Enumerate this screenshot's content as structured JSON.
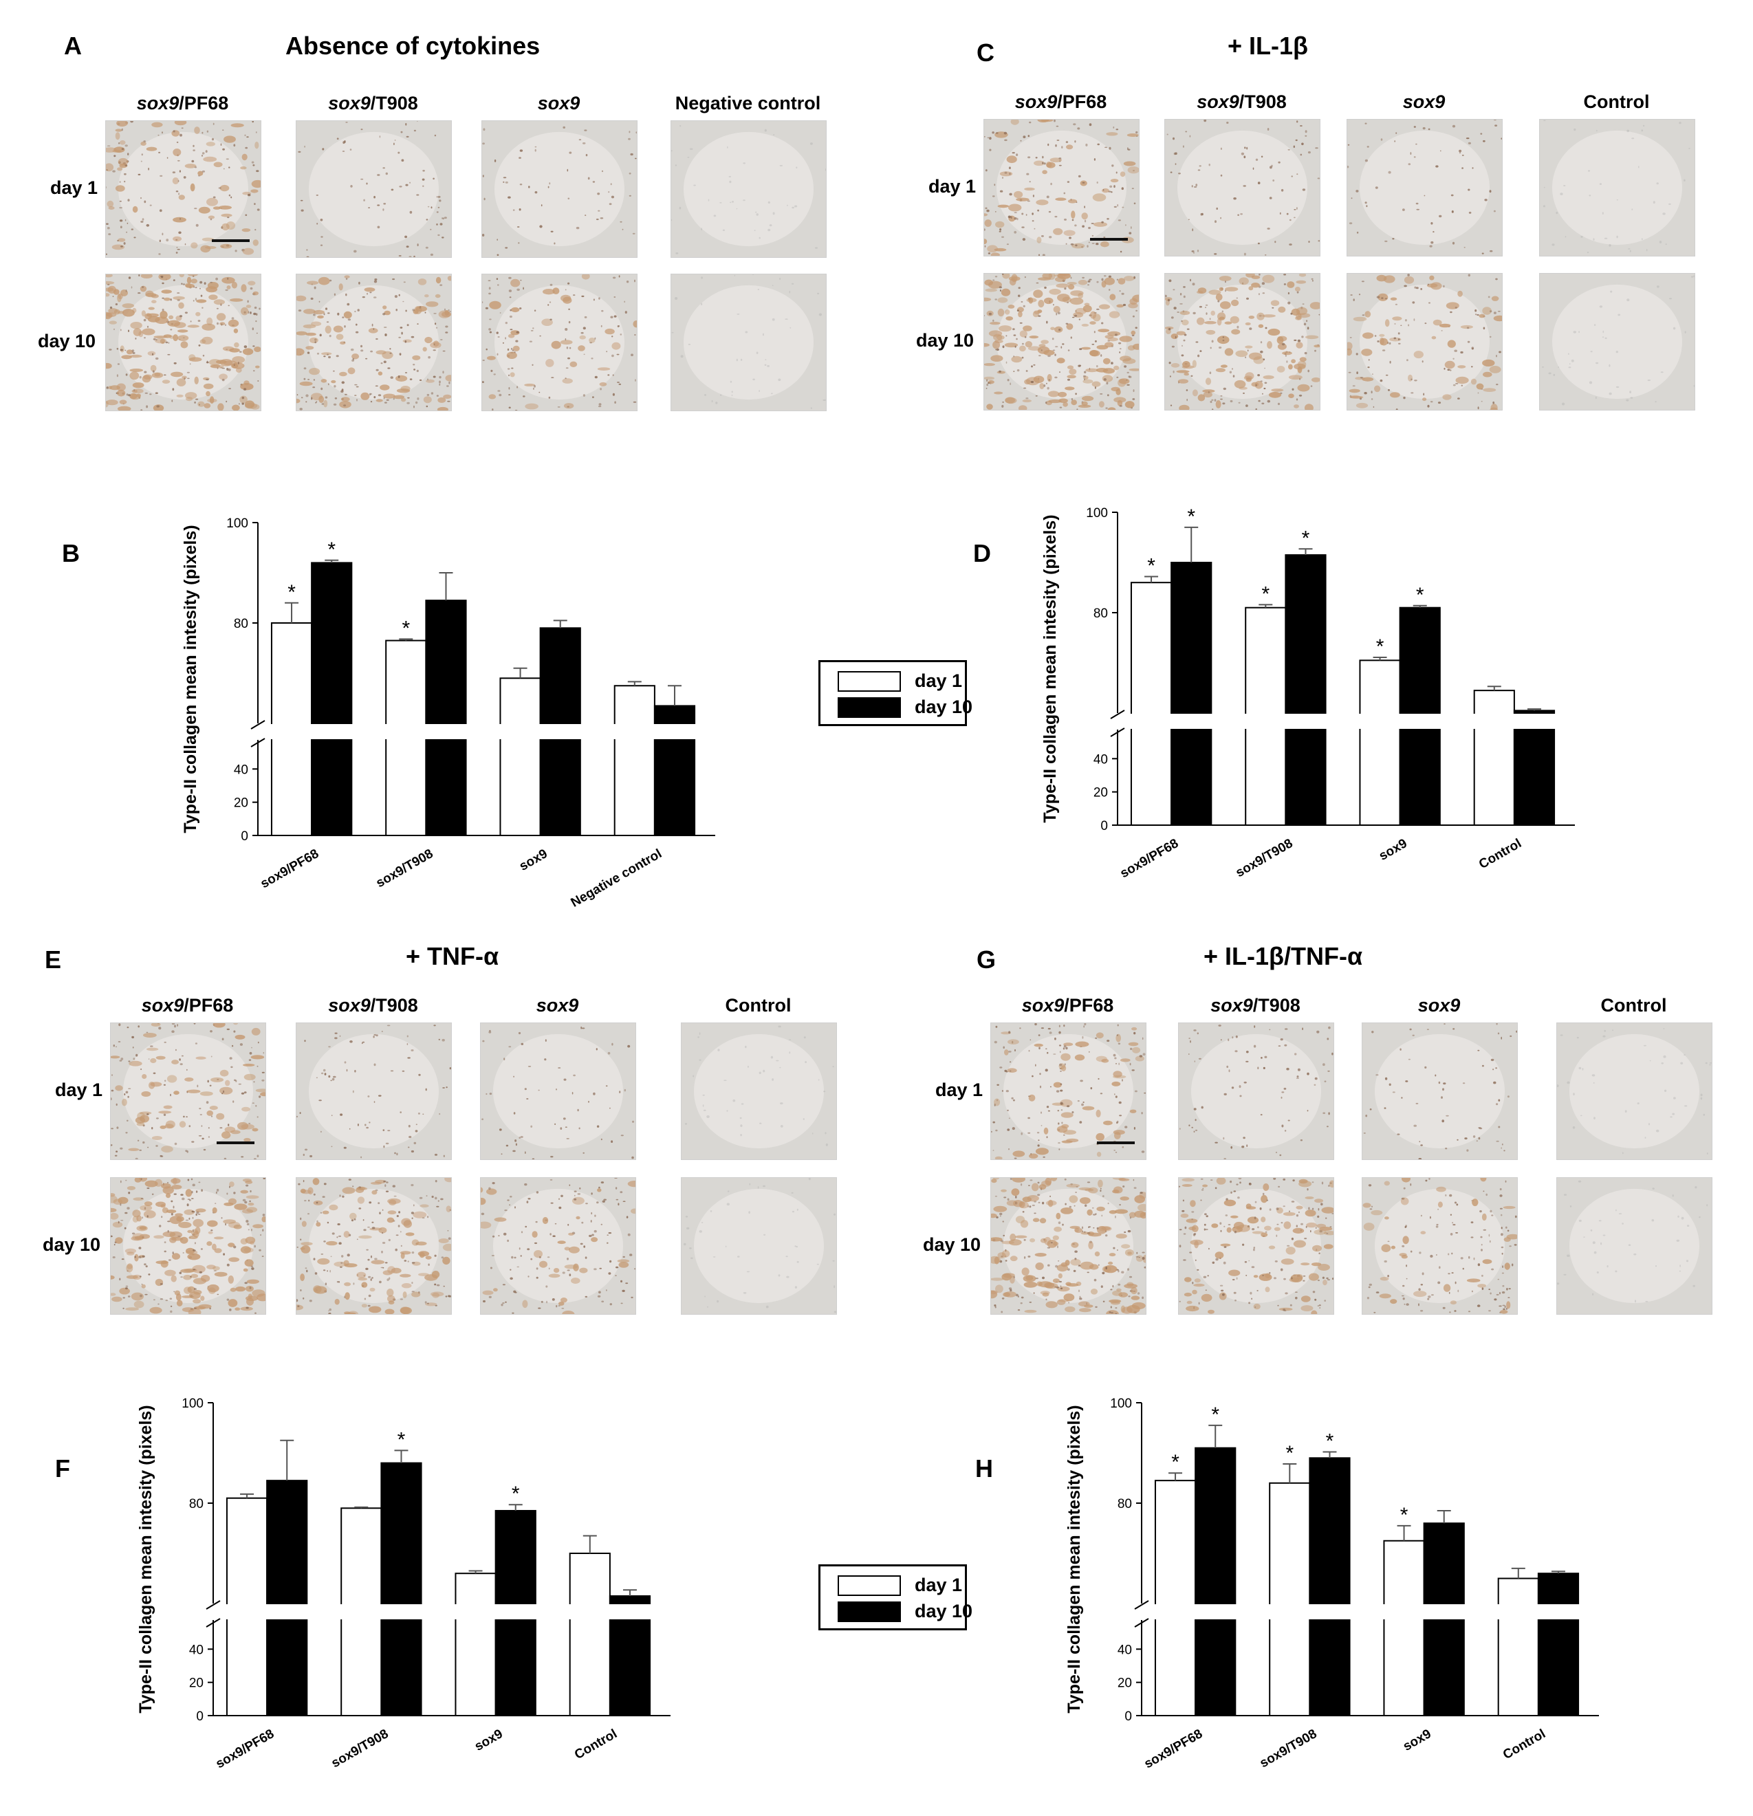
{
  "legend": {
    "day1_label": "day 1",
    "day10_label": "day 10",
    "colors": {
      "day1": "#ffffff",
      "day10": "#000000"
    }
  },
  "micrograph_panels": [
    {
      "letter": "A",
      "title": "Absence of cytokines",
      "columns": [
        {
          "gene": "sox9",
          "suffix": "/PF68"
        },
        {
          "gene": "sox9",
          "suffix": "/T908"
        },
        {
          "gene": "sox9",
          "suffix": ""
        },
        {
          "gene": "",
          "suffix": "Negative control"
        }
      ],
      "rows": [
        "day 1",
        "day 10"
      ]
    },
    {
      "letter": "C",
      "title": "+ IL-1β",
      "columns": [
        {
          "gene": "sox9",
          "suffix": "/PF68"
        },
        {
          "gene": "sox9",
          "suffix": "/T908"
        },
        {
          "gene": "sox9",
          "suffix": ""
        },
        {
          "gene": "",
          "suffix": "Control"
        }
      ],
      "rows": [
        "day 1",
        "day 10"
      ]
    },
    {
      "letter": "E",
      "title": "+ TNF-α",
      "columns": [
        {
          "gene": "sox9",
          "suffix": "/PF68"
        },
        {
          "gene": "sox9",
          "suffix": "/T908"
        },
        {
          "gene": "sox9",
          "suffix": ""
        },
        {
          "gene": "",
          "suffix": "Control"
        }
      ],
      "rows": [
        "day 1",
        "day 10"
      ]
    },
    {
      "letter": "G",
      "title": "+ IL-1β/TNF-α",
      "columns": [
        {
          "gene": "sox9",
          "suffix": "/PF68"
        },
        {
          "gene": "sox9",
          "suffix": "/T908"
        },
        {
          "gene": "sox9",
          "suffix": ""
        },
        {
          "gene": "",
          "suffix": "Control"
        }
      ],
      "rows": [
        "day 1",
        "day 10"
      ]
    }
  ],
  "chart_data": [
    {
      "panel": "B",
      "type": "bar",
      "ylabel": "Type-II collagen mean intesity (pixels)",
      "ylim": [
        0,
        100
      ],
      "axis_break": true,
      "yticks": [
        0,
        20,
        40,
        80,
        100
      ],
      "categories": [
        "sox9/PF68",
        "sox9/T908",
        "sox9",
        "Negative control"
      ],
      "series": [
        {
          "name": "day 1",
          "values": [
            80,
            76.5,
            69,
            67.5
          ],
          "errors": [
            4,
            0.3,
            2,
            0.8
          ],
          "sig": [
            true,
            true,
            false,
            false
          ]
        },
        {
          "name": "day 10",
          "values": [
            92,
            84.5,
            79,
            63.5
          ],
          "errors": [
            0.5,
            5.5,
            1.5,
            4
          ],
          "sig": [
            true,
            false,
            false,
            false
          ]
        }
      ]
    },
    {
      "panel": "D",
      "type": "bar",
      "ylabel": "Type-II collagen mean intesity (pixels)",
      "ylim": [
        0,
        100
      ],
      "axis_break": true,
      "yticks": [
        0,
        20,
        40,
        80,
        100
      ],
      "categories": [
        "sox9/PF68",
        "sox9/T908",
        "sox9",
        "Control"
      ],
      "series": [
        {
          "name": "day 1",
          "values": [
            86,
            81,
            70.5,
            64.5
          ],
          "errors": [
            1.2,
            0.6,
            0.6,
            0.8
          ],
          "sig": [
            true,
            true,
            true,
            false
          ]
        },
        {
          "name": "day 10",
          "values": [
            90,
            91.5,
            81,
            60.5
          ],
          "errors": [
            7,
            1.2,
            0.4,
            0.3
          ],
          "sig": [
            true,
            true,
            true,
            false
          ]
        }
      ]
    },
    {
      "panel": "F",
      "type": "bar",
      "ylabel": "Type-II collagen mean intesity (pixels)",
      "ylim": [
        0,
        100
      ],
      "axis_break": true,
      "yticks": [
        0,
        20,
        40,
        80,
        100
      ],
      "categories": [
        "sox9/PF68",
        "sox9/T908",
        "sox9",
        "Control"
      ],
      "series": [
        {
          "name": "day 1",
          "values": [
            81,
            79,
            66,
            70
          ],
          "errors": [
            0.8,
            0.2,
            0.5,
            3.5
          ],
          "sig": [
            false,
            false,
            false,
            false
          ]
        },
        {
          "name": "day 10",
          "values": [
            84.5,
            88,
            78.5,
            61.5
          ],
          "errors": [
            8,
            2.5,
            1.2,
            1.2
          ],
          "sig": [
            false,
            true,
            true,
            false
          ]
        }
      ]
    },
    {
      "panel": "H",
      "type": "bar",
      "ylabel": "Type-II collagen mean intesity (pixels)",
      "ylim": [
        0,
        100
      ],
      "axis_break": true,
      "yticks": [
        0,
        20,
        40,
        80,
        100
      ],
      "categories": [
        "sox9/PF68",
        "sox9/T908",
        "sox9",
        "Control"
      ],
      "series": [
        {
          "name": "day 1",
          "values": [
            84.5,
            84,
            72.5,
            65
          ],
          "errors": [
            1.5,
            3.8,
            3,
            2
          ],
          "sig": [
            true,
            true,
            true,
            false
          ]
        },
        {
          "name": "day 10",
          "values": [
            91,
            89,
            76,
            66
          ],
          "errors": [
            4.5,
            1.2,
            2.5,
            0.4
          ],
          "sig": [
            true,
            true,
            false,
            false
          ]
        }
      ]
    }
  ]
}
